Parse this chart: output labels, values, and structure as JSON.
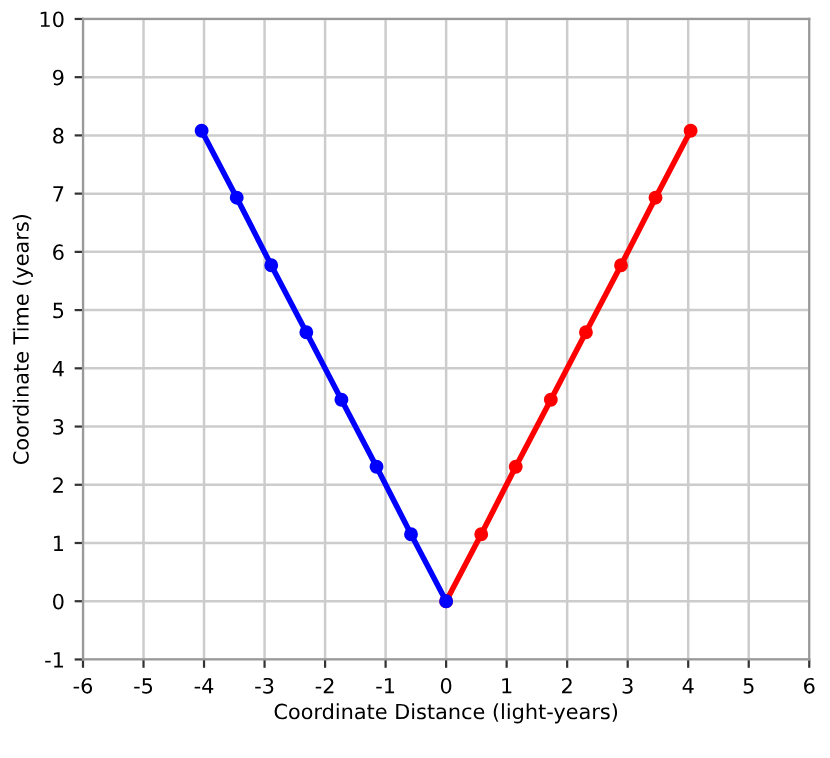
{
  "chart_data": {
    "type": "line",
    "xlabel": "Coordinate Distance (light-years)",
    "ylabel": "Coordinate Time (years)",
    "series": [
      {
        "color": "#ff0000",
        "x": [
          0,
          0.58,
          1.15,
          1.73,
          2.31,
          2.89,
          3.46,
          4.04
        ],
        "values": [
          0,
          1.15,
          2.31,
          3.46,
          4.62,
          5.77,
          6.93,
          8.08
        ]
      },
      {
        "color": "#0000ff",
        "x": [
          0,
          -0.58,
          -1.15,
          -1.73,
          -2.31,
          -2.89,
          -3.46,
          -4.04
        ],
        "values": [
          0,
          1.15,
          2.31,
          3.46,
          4.62,
          5.77,
          6.93,
          8.08
        ]
      }
    ],
    "xlim": [
      -6,
      6
    ],
    "xticks": [
      -6,
      -5,
      -4,
      -3,
      -2,
      -1,
      0,
      1,
      2,
      3,
      4,
      5,
      6
    ],
    "ylim": [
      -1,
      10
    ],
    "yticks": [
      -1,
      0,
      1,
      2,
      3,
      4,
      5,
      6,
      7,
      8,
      9,
      10
    ],
    "grid": true,
    "marker": "circle",
    "line_style": "solid"
  }
}
